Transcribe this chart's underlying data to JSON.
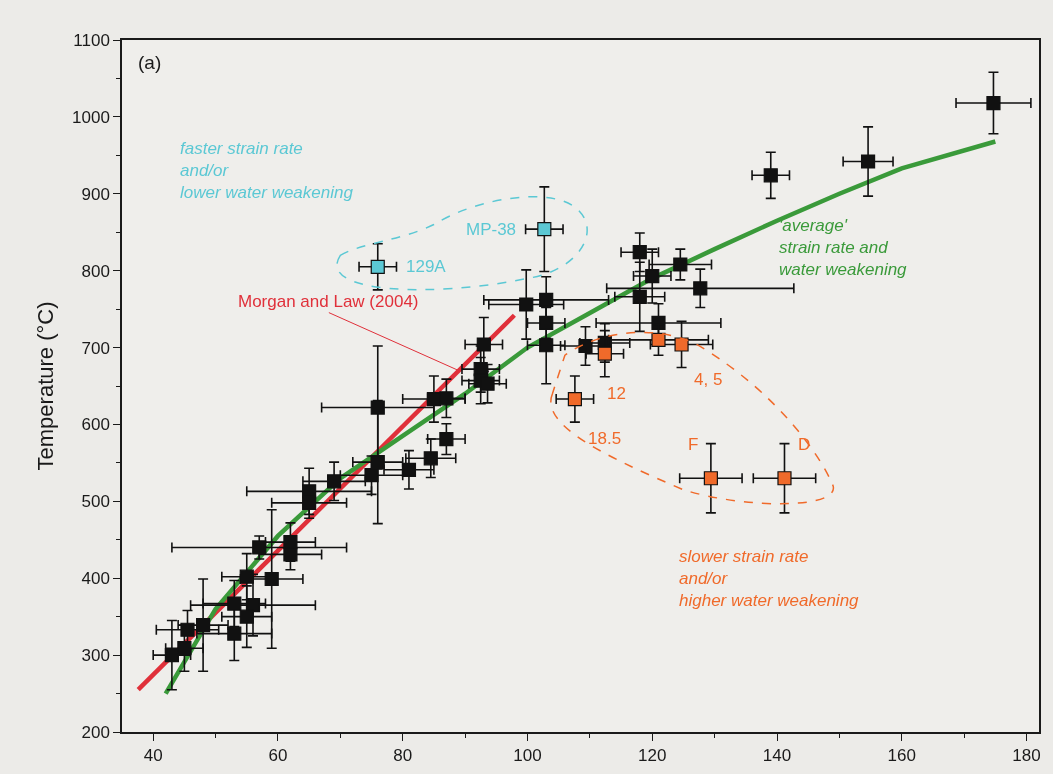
{
  "chart_data": {
    "type": "scatter",
    "ylabel": "Temperature (°C)",
    "xlim": [
      35,
      182
    ],
    "ylim": [
      200,
      1100
    ],
    "xticks": [
      40,
      60,
      80,
      100,
      120,
      140,
      160,
      180
    ],
    "yticks": [
      200,
      300,
      400,
      500,
      600,
      700,
      800,
      900,
      1000,
      1100
    ],
    "grid": false,
    "series": [
      {
        "color": "#111111",
        "marker": "square",
        "x": [
          43,
          45,
          45.5,
          48,
          53,
          53,
          56,
          55,
          55,
          59,
          57,
          62,
          62,
          65,
          65,
          69,
          75,
          76,
          81,
          76,
          84.5,
          87,
          85,
          87,
          93,
          92.5,
          92.5,
          93.6,
          99.8,
          103,
          103,
          103,
          109.3,
          112.4,
          118,
          120,
          124.5,
          118,
          127.7,
          121,
          139,
          154.6,
          174.7
        ],
        "values": [
          300,
          309,
          333,
          339,
          328,
          367,
          365,
          350,
          402,
          399,
          440,
          447,
          431,
          513,
          498,
          526,
          534,
          551,
          541,
          622,
          556,
          581,
          633,
          634,
          704,
          672,
          657,
          653,
          756,
          762,
          732,
          703,
          702,
          706,
          824,
          793,
          808,
          766,
          777,
          732,
          924,
          942,
          1018
        ],
        "xerrors": [
          3,
          3,
          5,
          4,
          6,
          5,
          10,
          4,
          4,
          5,
          14,
          4,
          5,
          10,
          6,
          5,
          5,
          4,
          4,
          9,
          4,
          3,
          5,
          3,
          3,
          3,
          3,
          3,
          6,
          10,
          3,
          3,
          4,
          4,
          3,
          3,
          5,
          4,
          15,
          10,
          3,
          4,
          6
        ],
        "errors": [
          45,
          30,
          25,
          60,
          35,
          30,
          40,
          40,
          30,
          90,
          15,
          25,
          20,
          30,
          20,
          25,
          25,
          80,
          25,
          80,
          25,
          20,
          30,
          25,
          35,
          30,
          30,
          25,
          45,
          30,
          20,
          50,
          25,
          25,
          25,
          35,
          20,
          45,
          25,
          25,
          30,
          45,
          40
        ]
      },
      {
        "color": "#5bc8d4",
        "marker": "square",
        "x": [
          76,
          102.7
        ],
        "values": [
          805,
          854
        ],
        "xerrors": [
          3,
          3
        ],
        "errors": [
          30,
          55
        ]
      },
      {
        "color": "#f06a2a",
        "marker": "square",
        "x": [
          112.4,
          121,
          124.7,
          107.6,
          129.4,
          141.2
        ],
        "values": [
          692,
          710,
          704,
          633,
          530,
          530
        ],
        "xerrors": [
          3,
          8,
          5,
          3,
          5,
          5
        ],
        "errors": [
          30,
          20,
          30,
          30,
          45,
          45
        ]
      },
      {
        "type": "line",
        "marker": "none",
        "color": "#e0303a",
        "x": [
          37.6,
          97.9
        ],
        "values": [
          255,
          742
        ]
      },
      {
        "type": "line",
        "marker": "none",
        "color": "#3a9a3a",
        "x": [
          42,
          50,
          60,
          70,
          80,
          90,
          100,
          110,
          120,
          130,
          140,
          150,
          160,
          175
        ],
        "values": [
          250,
          360,
          455,
          530,
          585,
          640,
          700,
          745,
          790,
          828,
          865,
          900,
          933,
          968
        ]
      }
    ],
    "annotations": [
      "(a)",
      "faster strain rate\nand/or\nlower water weakening",
      {
        "text": "MP-38",
        "x": 102.7,
        "y": 854
      },
      {
        "text": "129A",
        "x": 76,
        "y": 805
      },
      {
        "text": "Morgan and Law (2004)",
        "x": 89,
        "y": 670
      },
      "'average'\nstrain rate and\nwater weakening",
      {
        "text": "12",
        "x": 112.4,
        "y": 692
      },
      {
        "text": "4, 5",
        "x": 124.7,
        "y": 704
      },
      {
        "text": "18.5",
        "x": 107.6,
        "y": 633
      },
      {
        "text": "F",
        "x": 129.4,
        "y": 530
      },
      {
        "text": "D",
        "x": 141.2,
        "y": 530
      },
      "slower strain rate\nand/or\nhigher water weakening"
    ]
  }
}
